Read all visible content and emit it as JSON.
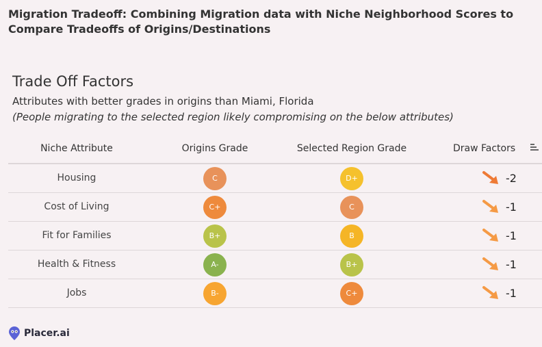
{
  "page_title": "Migration Tradeoff:  Combining Migration data with Niche Neighborhood Scores to Compare Tradeoffs of Origins/Destinations",
  "section_title": "Trade Off Factors",
  "subtitle": "Attributes with better grades in origins than Miami, Florida",
  "note": "(People migrating to the selected region likely compromising on the below attributes)",
  "table": {
    "headers": {
      "attribute": "Niche Attribute",
      "origins": "Origins Grade",
      "selected": "Selected Region Grade",
      "draw": "Draw Factors"
    },
    "sort_icon": "sort-descending-icon",
    "arrow_icon": "arrow-down-right-icon",
    "rows": [
      {
        "attribute": "Housing",
        "origins_grade": "C",
        "origins_color": "#e8925a",
        "selected_grade": "D+",
        "selected_color": "#f5c12d",
        "draw_factor": "-2"
      },
      {
        "attribute": "Cost of Living",
        "origins_grade": "C+",
        "origins_color": "#ee8a3c",
        "selected_grade": "C",
        "selected_color": "#e8925a",
        "draw_factor": "-1"
      },
      {
        "attribute": "Fit for Families",
        "origins_grade": "B+",
        "origins_color": "#b9c34a",
        "selected_grade": "B",
        "selected_color": "#f5b526",
        "draw_factor": "-1"
      },
      {
        "attribute": "Health & Fitness",
        "origins_grade": "A-",
        "origins_color": "#8ab24e",
        "selected_grade": "B+",
        "selected_color": "#b9c34a",
        "draw_factor": "-1"
      },
      {
        "attribute": "Jobs",
        "origins_grade": "B-",
        "origins_color": "#f7a531",
        "selected_grade": "C+",
        "selected_color": "#ee8a3c",
        "draw_factor": "-1"
      }
    ]
  },
  "brand": {
    "name": "Placer.ai",
    "icon": "placer-logo-icon",
    "color": "#5b63d6"
  }
}
